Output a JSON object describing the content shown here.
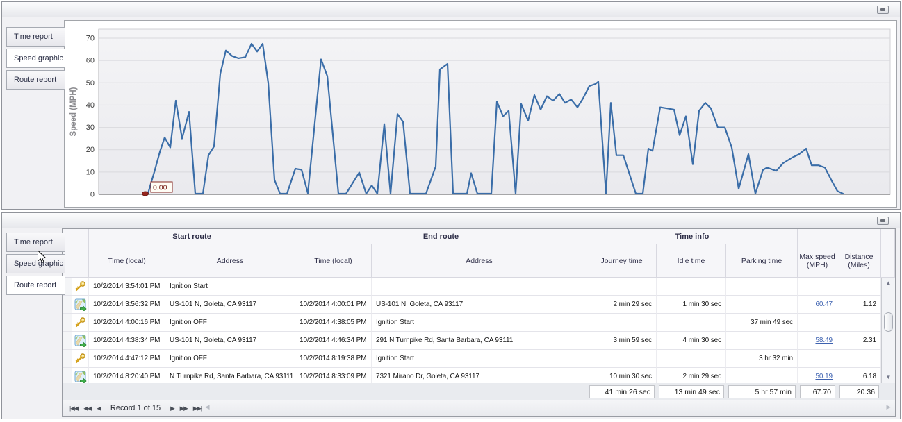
{
  "panels": {
    "top": {
      "tabs": [
        {
          "label": "Time report",
          "selected": false
        },
        {
          "label": "Speed graphic",
          "selected": true
        },
        {
          "label": "Route report",
          "selected": false
        }
      ]
    },
    "bottom": {
      "tabs": [
        {
          "label": "Time report",
          "selected": false
        },
        {
          "label": "Speed graphic",
          "selected": false
        },
        {
          "label": "Route report",
          "selected": true
        }
      ]
    }
  },
  "chart_data": {
    "type": "line",
    "title": "",
    "xlabel": "",
    "ylabel": "Speed (MPH)",
    "ylim": [
      0,
      70
    ],
    "yticks": [
      0,
      10,
      20,
      30,
      40,
      50,
      60,
      70
    ],
    "grid": true,
    "legend": false,
    "x_tick_labels_visible": false,
    "line_color": "#3a6da8",
    "marker": {
      "x": 65,
      "value": 0,
      "label": "0.00",
      "color": "#96261e"
    },
    "points": [
      [
        65,
        0
      ],
      [
        71,
        0.5
      ],
      [
        80,
        10
      ],
      [
        88,
        19
      ],
      [
        95,
        25.5
      ],
      [
        103,
        21
      ],
      [
        111,
        42
      ],
      [
        120,
        25
      ],
      [
        130,
        37
      ],
      [
        139,
        0.3
      ],
      [
        150,
        0.3
      ],
      [
        158,
        17.5
      ],
      [
        166,
        21.5
      ],
      [
        175,
        54
      ],
      [
        183,
        64.5
      ],
      [
        192,
        62
      ],
      [
        201,
        61
      ],
      [
        211,
        61.5
      ],
      [
        220,
        67.5
      ],
      [
        228,
        64
      ],
      [
        236,
        67.5
      ],
      [
        244,
        50
      ],
      [
        253,
        6.5
      ],
      [
        261,
        0.3
      ],
      [
        271,
        0.3
      ],
      [
        283,
        11.5
      ],
      [
        292,
        11
      ],
      [
        301,
        0.5
      ],
      [
        320,
        60.5
      ],
      [
        329,
        53
      ],
      [
        345,
        0.3
      ],
      [
        356,
        0.3
      ],
      [
        375,
        9.8
      ],
      [
        385,
        0.3
      ],
      [
        393,
        4
      ],
      [
        401,
        0.3
      ],
      [
        411,
        31.5
      ],
      [
        420,
        0.3
      ],
      [
        430,
        36
      ],
      [
        438,
        32.5
      ],
      [
        448,
        0.3
      ],
      [
        471,
        0.3
      ],
      [
        485,
        12.5
      ],
      [
        491,
        56
      ],
      [
        502,
        58.5
      ],
      [
        510,
        0.3
      ],
      [
        530,
        0.3
      ],
      [
        536,
        9.5
      ],
      [
        545,
        0.3
      ],
      [
        565,
        0.3
      ],
      [
        573,
        41.5
      ],
      [
        582,
        35
      ],
      [
        590,
        37.5
      ],
      [
        600,
        0.3
      ],
      [
        608,
        40.5
      ],
      [
        618,
        33
      ],
      [
        627,
        44.5
      ],
      [
        636,
        38
      ],
      [
        645,
        44
      ],
      [
        654,
        42
      ],
      [
        663,
        45
      ],
      [
        671,
        41
      ],
      [
        680,
        42.5
      ],
      [
        689,
        39
      ],
      [
        697,
        43
      ],
      [
        706,
        48.5
      ],
      [
        715,
        49.5
      ],
      [
        719,
        50.5
      ],
      [
        730,
        0.3
      ],
      [
        737,
        41
      ],
      [
        745,
        17.5
      ],
      [
        755,
        17.5
      ],
      [
        773,
        0.3
      ],
      [
        783,
        0.3
      ],
      [
        791,
        20.5
      ],
      [
        797,
        19.5
      ],
      [
        808,
        39
      ],
      [
        818,
        38.5
      ],
      [
        828,
        38
      ],
      [
        836,
        26.5
      ],
      [
        845,
        35
      ],
      [
        855,
        13.5
      ],
      [
        864,
        37.5
      ],
      [
        873,
        41
      ],
      [
        881,
        38.5
      ],
      [
        891,
        30
      ],
      [
        901,
        30
      ],
      [
        911,
        21
      ],
      [
        921,
        2.5
      ],
      [
        935,
        18
      ],
      [
        945,
        0.3
      ],
      [
        956,
        11
      ],
      [
        962,
        12
      ],
      [
        975,
        10.5
      ],
      [
        985,
        14
      ],
      [
        998,
        16.5
      ],
      [
        1008,
        18
      ],
      [
        1018,
        20.5
      ],
      [
        1026,
        13
      ],
      [
        1036,
        13
      ],
      [
        1045,
        12
      ],
      [
        1055,
        6
      ],
      [
        1063,
        1.5
      ],
      [
        1071,
        0.3
      ]
    ]
  },
  "table": {
    "group_headers": [
      {
        "label": "Start route"
      },
      {
        "label": "End route"
      },
      {
        "label": "Time info"
      }
    ],
    "columns": [
      "Time (local)",
      "Address",
      "Time (local)",
      "Address",
      "Journey time",
      "Idle time",
      "Parking time",
      "Max speed (MPH)",
      "Distance (Miles)"
    ],
    "rows": [
      {
        "icon": "key",
        "start_time": "10/2/2014 3:54:01 PM",
        "start_address": "Ignition Start",
        "end_time": "",
        "end_address": "",
        "journey": "",
        "idle": "",
        "parking": "",
        "max_speed": "",
        "distance": ""
      },
      {
        "icon": "map",
        "start_time": "10/2/2014 3:56:32 PM",
        "start_address": "US-101 N, Goleta, CA 93117",
        "end_time": "10/2/2014 4:00:01 PM",
        "end_address": "US-101 N, Goleta, CA 93117",
        "journey": "2 min 29 sec",
        "idle": "1 min 30 sec",
        "parking": "",
        "max_speed": "60.47",
        "distance": "1.12"
      },
      {
        "icon": "key",
        "start_time": "10/2/2014 4:00:16 PM",
        "start_address": "Ignition OFF",
        "end_time": "10/2/2014 4:38:05 PM",
        "end_address": "Ignition Start",
        "journey": "",
        "idle": "",
        "parking": "37 min 49 sec",
        "max_speed": "",
        "distance": ""
      },
      {
        "icon": "map",
        "start_time": "10/2/2014 4:38:34 PM",
        "start_address": "US-101 N, Goleta, CA 93117",
        "end_time": "10/2/2014 4:46:34 PM",
        "end_address": "291 N Turnpike Rd, Santa Barbara, CA 93111",
        "journey": "3 min 59 sec",
        "idle": "4 min 30 sec",
        "parking": "",
        "max_speed": "58.49",
        "distance": "2.31"
      },
      {
        "icon": "key",
        "start_time": "10/2/2014 4:47:12 PM",
        "start_address": "Ignition OFF",
        "end_time": "10/2/2014 8:19:38 PM",
        "end_address": "Ignition Start",
        "journey": "",
        "idle": "",
        "parking": "3 hr 32 min",
        "max_speed": "",
        "distance": ""
      },
      {
        "icon": "map",
        "start_time": "10/2/2014 8:20:40 PM",
        "start_address": "N Turnpike Rd, Santa Barbara, CA 93111",
        "end_time": "10/2/2014 8:33:09 PM",
        "end_address": "7321 Mirano Dr, Goleta, CA 93117",
        "journey": "10 min 30 sec",
        "idle": "2 min 29 sec",
        "parking": "",
        "max_speed": "50.19",
        "distance": "6.18"
      }
    ],
    "summary": {
      "journey": "41 min 26 sec",
      "idle": "13 min 49 sec",
      "parking": "5 hr 57 min",
      "max_speed": "67.70",
      "distance": "20.36"
    },
    "pager": {
      "text": "Record 1 of 15",
      "buttons": [
        "first",
        "prev-page",
        "prev",
        "next",
        "next-page",
        "last"
      ]
    }
  }
}
